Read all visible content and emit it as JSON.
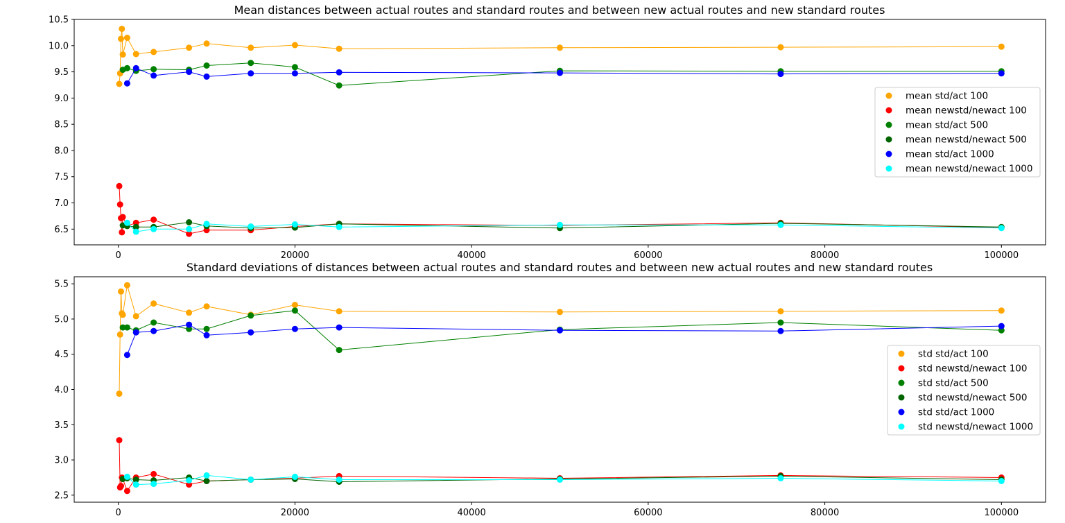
{
  "chart_data": [
    {
      "type": "line",
      "title": "Mean distances between actual routes and standard routes and between new actual routes and new standard routes",
      "xlabel": "",
      "ylabel": "",
      "xlim": [
        -5000,
        105000
      ],
      "ylim": [
        6.2,
        10.5
      ],
      "xticks": [
        0,
        20000,
        40000,
        60000,
        80000,
        100000
      ],
      "yticks": [
        6.5,
        7.0,
        7.5,
        8.0,
        8.5,
        9.0,
        9.5,
        10.0,
        10.5
      ],
      "ytick_labels": [
        "6.5",
        "7.0",
        "7.5",
        "8.0",
        "8.5",
        "9.0",
        "9.5",
        "10.0",
        "10.5"
      ],
      "grid": false,
      "legend_position": "right",
      "series": [
        {
          "name": "mean std/act 100",
          "color": "#ffa500",
          "x": [
            100,
            200,
            300,
            400,
            500,
            1000,
            2000,
            4000,
            8000,
            10000,
            15000,
            20000,
            25000,
            50000,
            75000,
            100000
          ],
          "y": [
            9.27,
            9.47,
            10.13,
            10.32,
            9.83,
            10.15,
            9.84,
            9.88,
            9.96,
            10.04,
            9.96,
            10.01,
            9.94,
            9.96,
            9.97,
            9.98
          ]
        },
        {
          "name": "mean newstd/newact 100",
          "color": "#ff0000",
          "x": [
            100,
            200,
            300,
            400,
            500,
            1000,
            2000,
            4000,
            8000,
            10000,
            15000,
            20000,
            25000,
            50000,
            75000,
            100000
          ],
          "y": [
            7.32,
            6.97,
            6.71,
            6.44,
            6.73,
            6.56,
            6.62,
            6.68,
            6.41,
            6.48,
            6.48,
            6.55,
            6.6,
            6.57,
            6.62,
            6.53
          ]
        },
        {
          "name": "mean std/act 500",
          "color": "#008000",
          "x": [
            500,
            1000,
            2000,
            4000,
            8000,
            10000,
            15000,
            20000,
            25000,
            50000,
            75000,
            100000
          ],
          "y": [
            9.54,
            9.57,
            9.52,
            9.55,
            9.54,
            9.62,
            9.67,
            9.59,
            9.24,
            9.52,
            9.51,
            9.51
          ]
        },
        {
          "name": "mean newstd/newact 500",
          "color": "#006400",
          "x": [
            500,
            1000,
            2000,
            4000,
            8000,
            10000,
            15000,
            20000,
            25000,
            50000,
            75000,
            100000
          ],
          "y": [
            6.57,
            6.56,
            6.54,
            6.54,
            6.63,
            6.56,
            6.52,
            6.53,
            6.6,
            6.52,
            6.61,
            6.54
          ]
        },
        {
          "name": "mean std/act 1000",
          "color": "#0000ff",
          "x": [
            1000,
            2000,
            4000,
            8000,
            10000,
            15000,
            20000,
            25000,
            50000,
            75000,
            100000
          ],
          "y": [
            9.28,
            9.57,
            9.43,
            9.5,
            9.41,
            9.47,
            9.47,
            9.49,
            9.48,
            9.46,
            9.47
          ]
        },
        {
          "name": "mean newstd/newact 1000",
          "color": "#00ffff",
          "x": [
            1000,
            2000,
            4000,
            8000,
            10000,
            15000,
            20000,
            25000,
            50000,
            75000,
            100000
          ],
          "y": [
            6.62,
            6.45,
            6.5,
            6.5,
            6.6,
            6.55,
            6.59,
            6.54,
            6.58,
            6.58,
            6.52
          ]
        }
      ]
    },
    {
      "type": "line",
      "title": "Standard deviations of distances between actual routes and standard routes and between new actual routes and new standard routes",
      "xlabel": "",
      "ylabel": "",
      "xlim": [
        -5000,
        105000
      ],
      "ylim": [
        2.4,
        5.6
      ],
      "xticks": [
        0,
        20000,
        40000,
        60000,
        80000,
        100000
      ],
      "yticks": [
        2.5,
        3.0,
        3.5,
        4.0,
        4.5,
        5.0,
        5.5
      ],
      "ytick_labels": [
        "2.5",
        "3.0",
        "3.5",
        "4.0",
        "4.5",
        "5.0",
        "5.5"
      ],
      "grid": false,
      "legend_position": "right",
      "series": [
        {
          "name": "std std/act 100",
          "color": "#ffa500",
          "x": [
            100,
            200,
            300,
            400,
            500,
            1000,
            2000,
            4000,
            8000,
            10000,
            15000,
            20000,
            25000,
            50000,
            75000,
            100000
          ],
          "y": [
            3.94,
            4.78,
            5.39,
            5.08,
            5.06,
            5.48,
            5.04,
            5.22,
            5.09,
            5.18,
            5.06,
            5.2,
            5.11,
            5.1,
            5.11,
            5.12
          ]
        },
        {
          "name": "std newstd/newact 100",
          "color": "#ff0000",
          "x": [
            100,
            200,
            300,
            400,
            500,
            1000,
            2000,
            4000,
            8000,
            10000,
            15000,
            20000,
            25000,
            50000,
            75000,
            100000
          ],
          "y": [
            3.28,
            2.61,
            2.63,
            2.75,
            2.73,
            2.56,
            2.75,
            2.8,
            2.65,
            2.7,
            2.72,
            2.74,
            2.77,
            2.74,
            2.78,
            2.75
          ]
        },
        {
          "name": "std std/act 500",
          "color": "#008000",
          "x": [
            500,
            1000,
            2000,
            4000,
            8000,
            10000,
            15000,
            20000,
            25000,
            50000,
            75000,
            100000
          ],
          "y": [
            4.88,
            4.88,
            4.84,
            4.95,
            4.86,
            4.86,
            5.05,
            5.12,
            4.56,
            4.85,
            4.95,
            4.84
          ]
        },
        {
          "name": "std newstd/newact 500",
          "color": "#006400",
          "x": [
            500,
            1000,
            2000,
            4000,
            8000,
            10000,
            15000,
            20000,
            25000,
            50000,
            75000,
            100000
          ],
          "y": [
            2.73,
            2.74,
            2.72,
            2.71,
            2.75,
            2.7,
            2.72,
            2.73,
            2.69,
            2.73,
            2.77,
            2.72
          ]
        },
        {
          "name": "std std/act 1000",
          "color": "#0000ff",
          "x": [
            1000,
            2000,
            4000,
            8000,
            10000,
            15000,
            20000,
            25000,
            50000,
            75000,
            100000
          ],
          "y": [
            4.49,
            4.81,
            4.83,
            4.92,
            4.77,
            4.81,
            4.86,
            4.88,
            4.84,
            4.83,
            4.9
          ]
        },
        {
          "name": "std newstd/newact 1000",
          "color": "#00ffff",
          "x": [
            1000,
            2000,
            4000,
            8000,
            10000,
            15000,
            20000,
            25000,
            50000,
            75000,
            100000
          ],
          "y": [
            2.76,
            2.65,
            2.66,
            2.71,
            2.78,
            2.72,
            2.76,
            2.72,
            2.72,
            2.74,
            2.7
          ]
        }
      ]
    }
  ]
}
